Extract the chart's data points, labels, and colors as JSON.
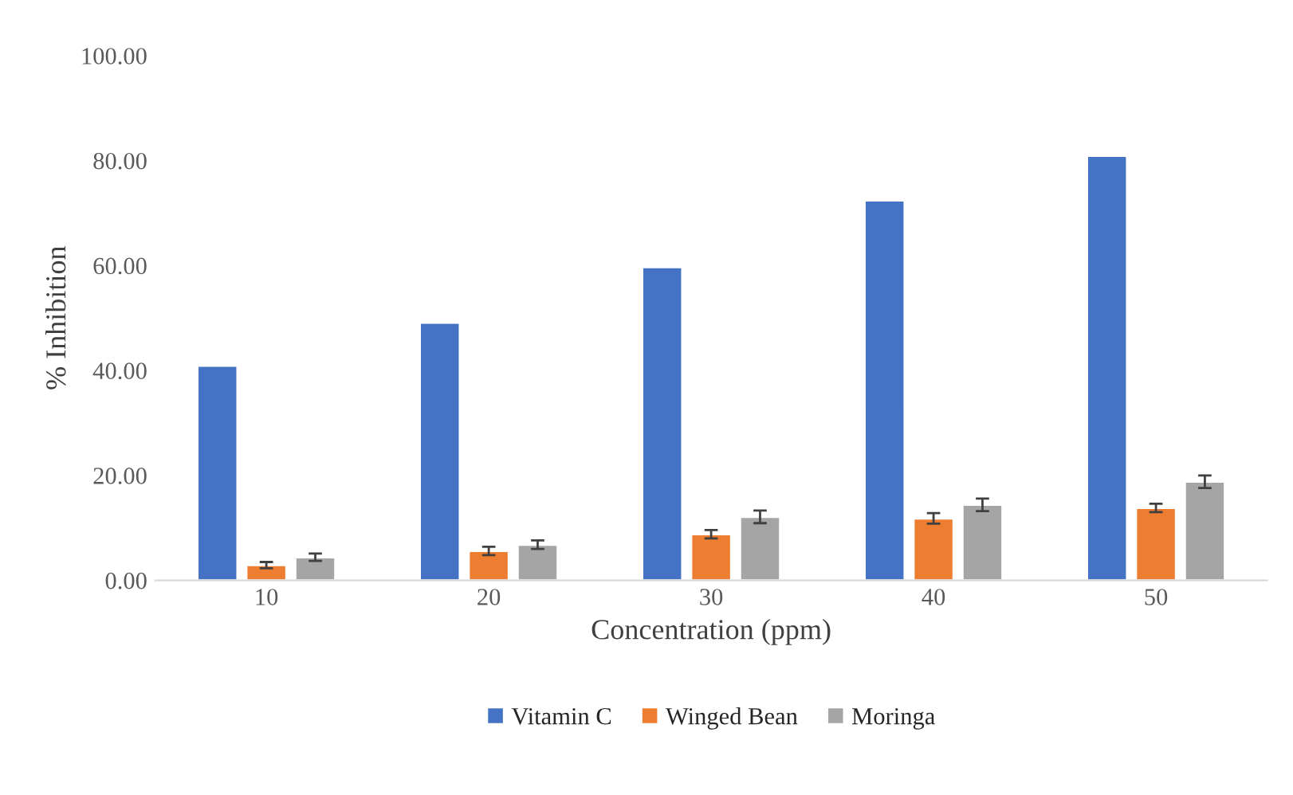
{
  "chart_data": {
    "type": "bar",
    "xlabel": "Concentration (ppm)",
    "ylabel": "% Inhibition",
    "categories": [
      "10",
      "20",
      "30",
      "40",
      "50"
    ],
    "series": [
      {
        "name": "Vitamin C",
        "color": "#4472c4",
        "values": [
          40.9,
          49.1,
          59.7,
          72.4,
          80.9
        ]
      },
      {
        "name": "Winged Bean",
        "color": "#ed7d31",
        "values": [
          2.9,
          5.6,
          8.8,
          11.8,
          13.8
        ],
        "errors": [
          0.6,
          0.8,
          0.8,
          1.0,
          0.8
        ]
      },
      {
        "name": "Moringa",
        "color": "#a5a5a5",
        "values": [
          4.4,
          6.8,
          12.1,
          14.4,
          18.8
        ],
        "errors": [
          0.7,
          0.8,
          1.2,
          1.2,
          1.2
        ]
      }
    ],
    "ylim": [
      0,
      100
    ],
    "yticks": [
      {
        "value": 0,
        "label": "0.00"
      },
      {
        "value": 20,
        "label": "20.00"
      },
      {
        "value": 40,
        "label": "40.00"
      },
      {
        "value": 60,
        "label": "60.00"
      },
      {
        "value": 80,
        "label": "80.00"
      },
      {
        "value": 100,
        "label": "100.00"
      }
    ],
    "grid": false,
    "legend": "bottom"
  }
}
